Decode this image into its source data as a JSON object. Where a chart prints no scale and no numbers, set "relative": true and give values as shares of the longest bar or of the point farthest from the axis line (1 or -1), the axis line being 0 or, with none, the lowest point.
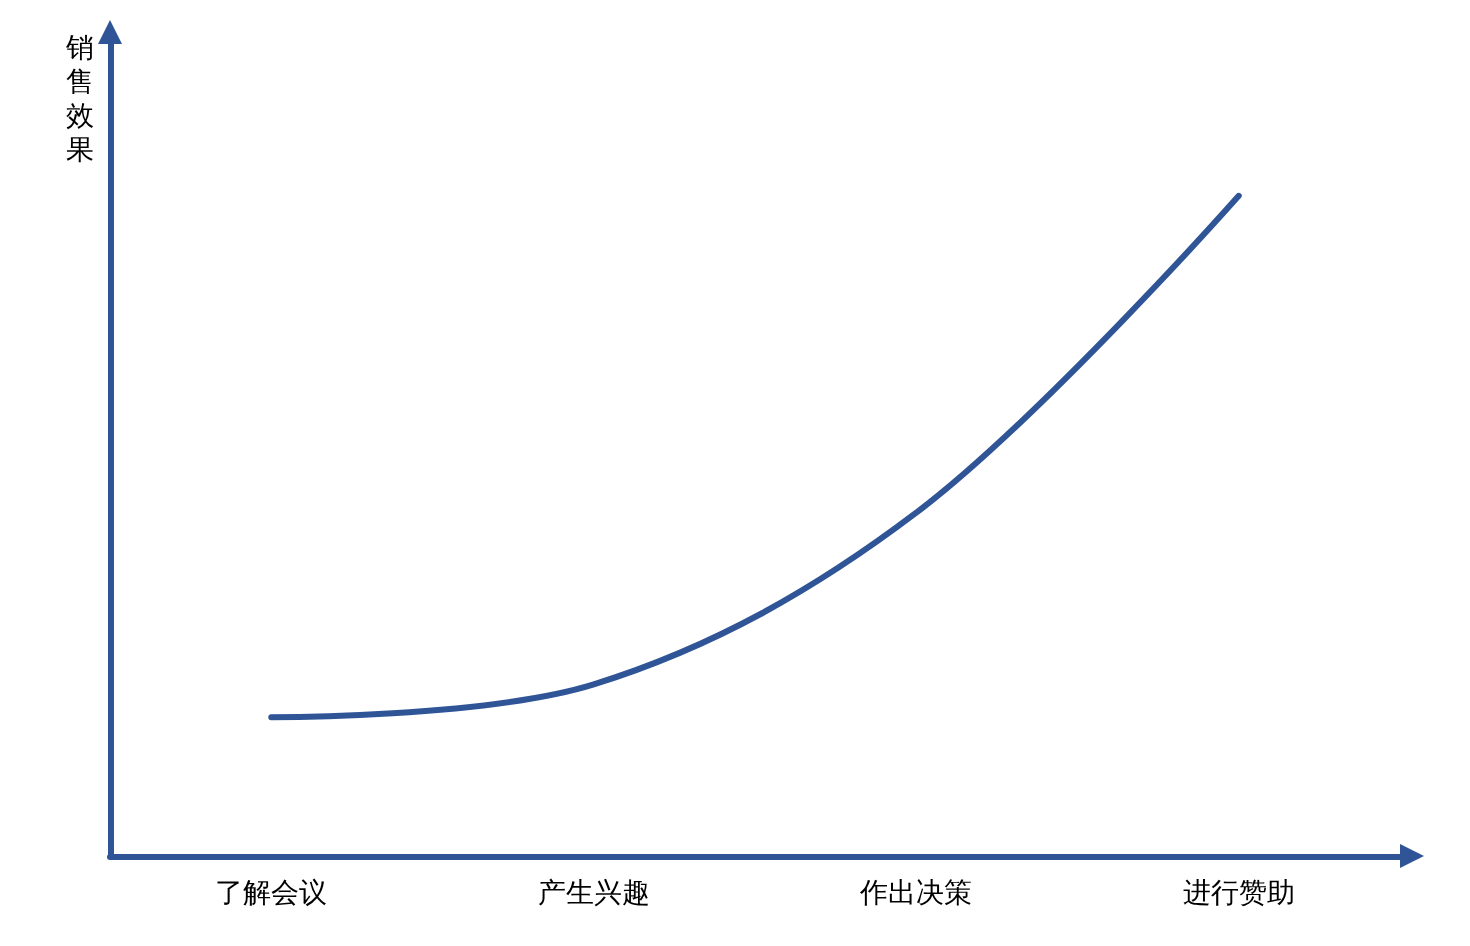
{
  "chart_data": {
    "type": "line",
    "ylabel": "销售效果",
    "categories": [
      "了解会议",
      "产生兴趣",
      "作出决策",
      "进行赞助"
    ],
    "relative": true,
    "series": [
      {
        "color": "#2f5597",
        "values": [
          0.21,
          0.26,
          0.52,
          1
        ]
      }
    ],
    "marker": "none",
    "grid": false
  }
}
